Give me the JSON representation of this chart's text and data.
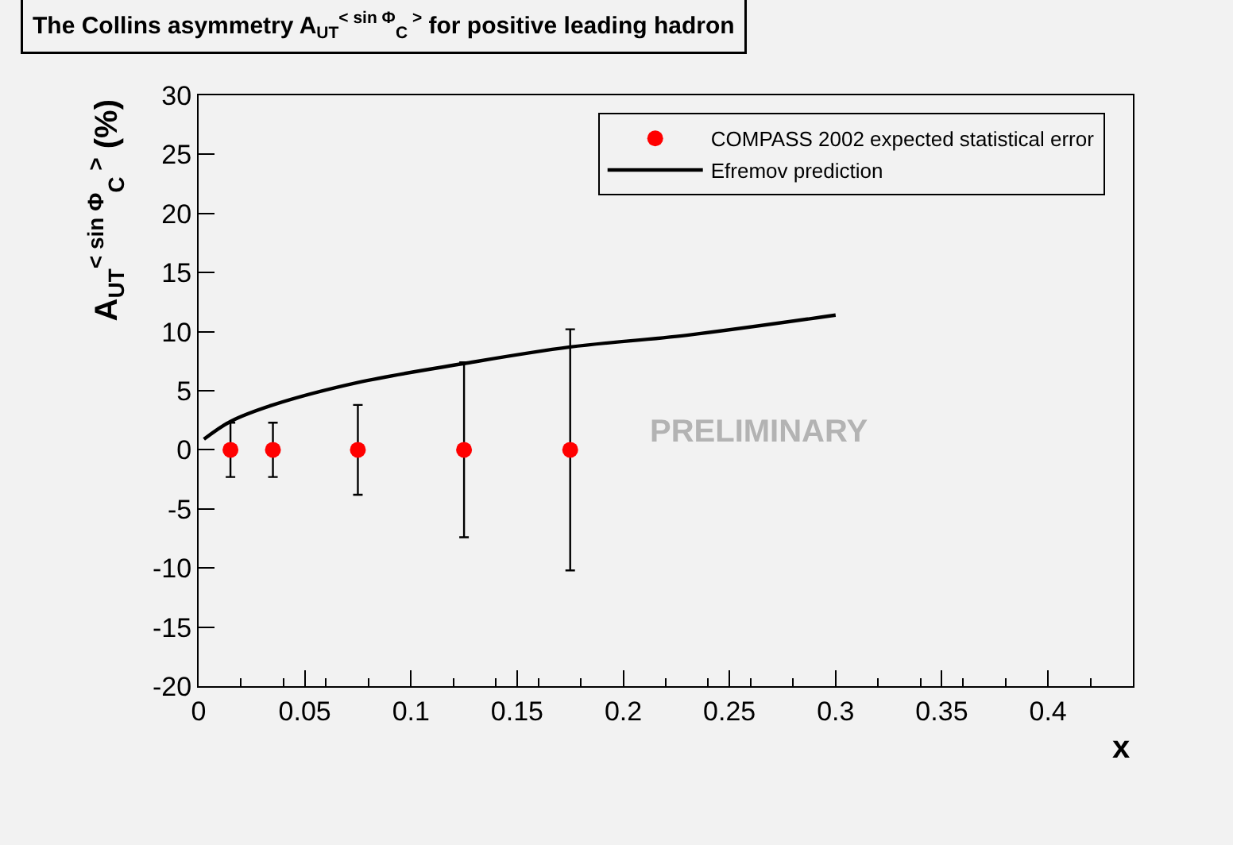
{
  "chart_data": {
    "type": "scatter",
    "title": "The Collins asymmetry A$_{UT}$$^{< sin Φ}$$_{C}$$^{ >}$ for positive leading hadron",
    "xlabel": "x",
    "ylabel": "A$_{UT}$$^{< sin Φ}$$_{C}$$^{ >}$ (%)",
    "xlim": [
      0,
      0.44
    ],
    "xticks": [
      0,
      0.05,
      0.1,
      0.15,
      0.2,
      0.25,
      0.3,
      0.35,
      0.4
    ],
    "ylim": [
      -20,
      30
    ],
    "yticks": [
      -20,
      -15,
      -10,
      -5,
      0,
      5,
      10,
      15,
      20,
      25,
      30
    ],
    "grid": false,
    "legend": "top right",
    "annotations": [
      "PRELIMINARY"
    ],
    "series": [
      {
        "name": "COMPASS 2002 expected statistical error",
        "color": "#ff0000",
        "marker": "circle",
        "x": [
          0.015,
          0.035,
          0.075,
          0.125,
          0.175
        ],
        "values": [
          0,
          0,
          0,
          0,
          0
        ],
        "errors": [
          2.3,
          2.3,
          3.8,
          7.4,
          10.2
        ]
      },
      {
        "name": "Efremov prediction",
        "type": "line",
        "color": "#000000",
        "marker": "none",
        "line_style": "solid",
        "x": [
          0.0025,
          0.015,
          0.035,
          0.075,
          0.125,
          0.175,
          0.23,
          0.3
        ],
        "values": [
          0.9,
          2.4,
          3.8,
          5.7,
          7.3,
          8.7,
          9.7,
          11.4
        ]
      }
    ]
  }
}
